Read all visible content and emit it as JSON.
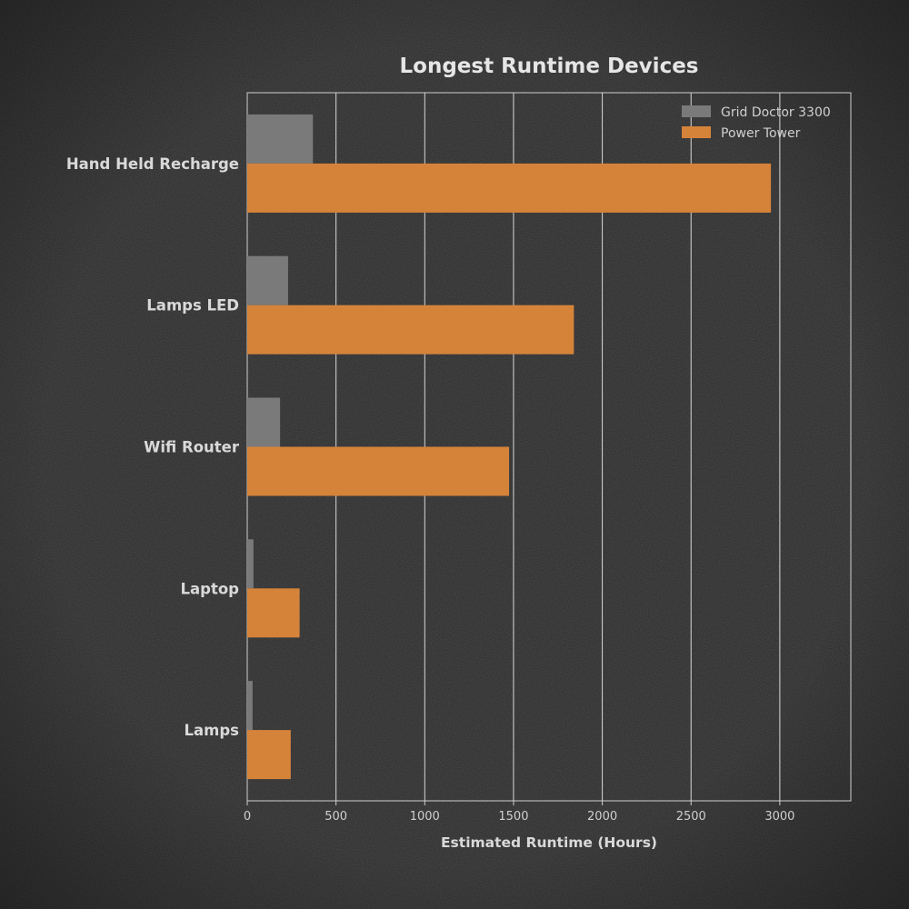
{
  "chart_data": {
    "type": "bar",
    "orientation": "horizontal",
    "title": "Longest Runtime Devices",
    "xlabel": "Estimated Runtime (Hours)",
    "ylabel": "",
    "xlim": [
      0,
      3400
    ],
    "xticks": [
      0,
      500,
      1000,
      1500,
      2000,
      2500,
      3000
    ],
    "grid": "vertical",
    "legend_position": "top-right",
    "categories": [
      "Hand Held Recharge",
      "Lamps LED",
      "Wifi Router",
      "Laptop",
      "Lamps"
    ],
    "series": [
      {
        "name": "Grid Doctor 3300",
        "color": "#7a7a7a",
        "values": [
          370,
          230,
          185,
          35,
          30
        ]
      },
      {
        "name": "Power Tower",
        "color": "#d6833a",
        "values": [
          2950,
          1840,
          1475,
          295,
          245
        ]
      }
    ]
  }
}
